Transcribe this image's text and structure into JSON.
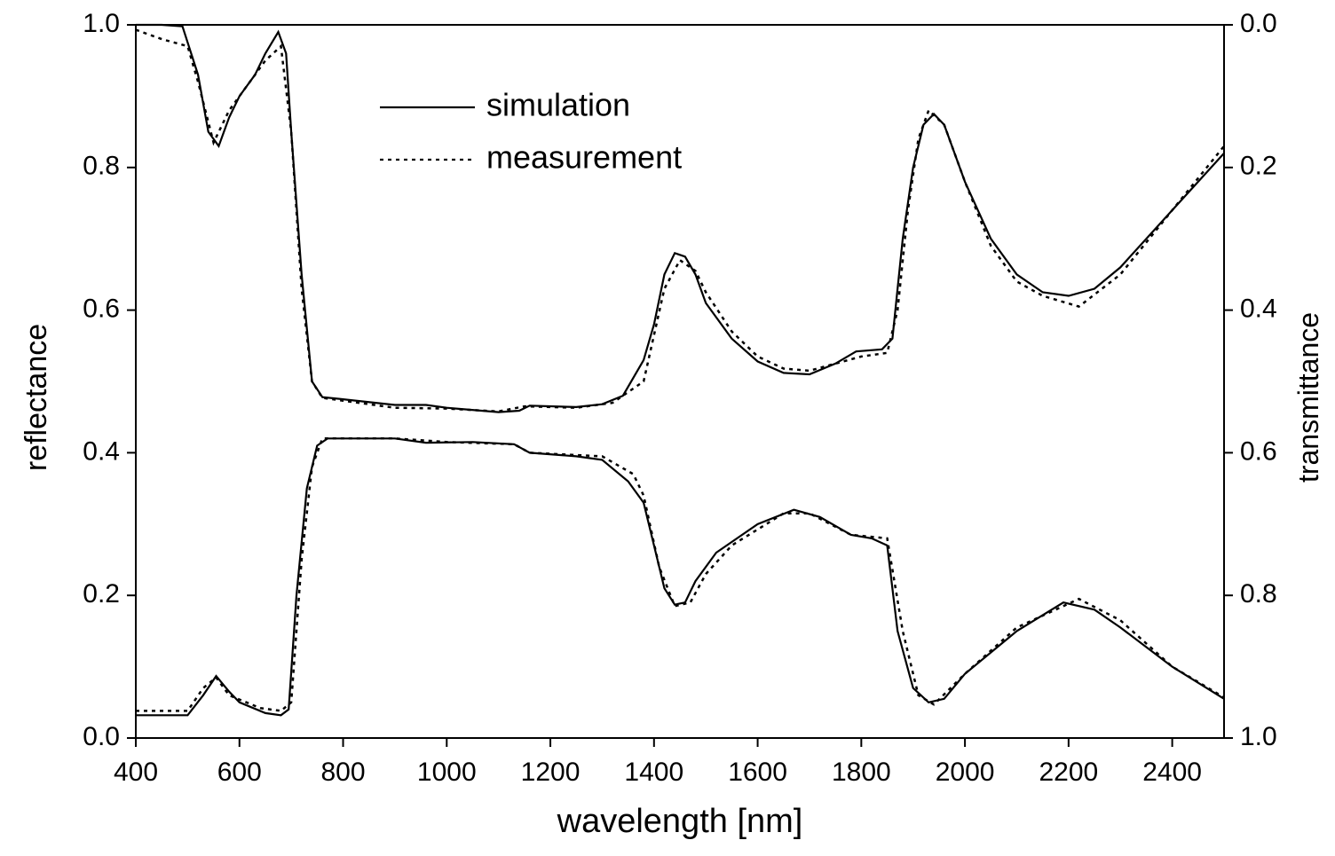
{
  "chart_data": {
    "type": "line",
    "xlabel": "wavelength [nm]",
    "ylabel": "reflectance",
    "y2label": "transmittance",
    "xlim": [
      400,
      2500
    ],
    "xticks": [
      400,
      600,
      800,
      1000,
      1200,
      1400,
      1600,
      1800,
      2000,
      2200,
      2400
    ],
    "ylim": [
      0,
      1
    ],
    "yticks": [
      {
        "value": 0,
        "label": "0.0"
      },
      0.2,
      0.4,
      0.6,
      0.8,
      {
        "value": 1,
        "label": "1.0"
      }
    ],
    "y2lim": [
      1,
      0
    ],
    "y2ticks": [
      {
        "value": 0,
        "label": "0.0"
      },
      0.2,
      0.4,
      0.6,
      0.8,
      {
        "value": 1,
        "label": "1.0"
      }
    ],
    "legend": "top-center",
    "series": [
      {
        "name": "simulation",
        "color": "#000000",
        "dash": "solid",
        "x": [
          400,
          450,
          490,
          520,
          540,
          560,
          580,
          600,
          630,
          650,
          675,
          690,
          700,
          720,
          740,
          760,
          800,
          900,
          960,
          1000,
          1100,
          1140,
          1160,
          1250,
          1300,
          1340,
          1380,
          1400,
          1420,
          1440,
          1460,
          1480,
          1500,
          1550,
          1600,
          1650,
          1700,
          1750,
          1790,
          1840,
          1860,
          1880,
          1900,
          1920,
          1940,
          1960,
          2000,
          2050,
          2100,
          2150,
          2200,
          2250,
          2300,
          2400,
          2500
        ],
        "values": [
          1.0,
          1.0,
          0.998,
          0.93,
          0.85,
          0.83,
          0.87,
          0.9,
          0.93,
          0.96,
          0.99,
          0.96,
          0.85,
          0.65,
          0.5,
          0.478,
          0.475,
          0.467,
          0.467,
          0.463,
          0.457,
          0.459,
          0.466,
          0.464,
          0.468,
          0.48,
          0.53,
          0.58,
          0.65,
          0.68,
          0.675,
          0.65,
          0.61,
          0.56,
          0.528,
          0.512,
          0.51,
          0.525,
          0.542,
          0.545,
          0.56,
          0.7,
          0.8,
          0.86,
          0.875,
          0.86,
          0.78,
          0.7,
          0.65,
          0.625,
          0.62,
          0.63,
          0.66,
          0.74,
          0.82
        ]
      },
      {
        "name": "measurement",
        "color": "#000000",
        "dash": "dotted",
        "x": [
          400,
          450,
          500,
          520,
          550,
          580,
          600,
          650,
          680,
          700,
          720,
          740,
          760,
          800,
          900,
          1000,
          1100,
          1150,
          1250,
          1320,
          1380,
          1420,
          1450,
          1480,
          1500,
          1550,
          1600,
          1650,
          1700,
          1750,
          1800,
          1850,
          1870,
          1890,
          1910,
          1930,
          1960,
          2000,
          2050,
          2100,
          2150,
          2220,
          2300,
          2400,
          2500
        ],
        "values": [
          0.993,
          0.98,
          0.97,
          0.92,
          0.835,
          0.88,
          0.9,
          0.95,
          0.97,
          0.85,
          0.63,
          0.5,
          0.477,
          0.473,
          0.463,
          0.462,
          0.458,
          0.465,
          0.463,
          0.47,
          0.5,
          0.63,
          0.67,
          0.655,
          0.625,
          0.57,
          0.535,
          0.518,
          0.515,
          0.525,
          0.535,
          0.54,
          0.6,
          0.74,
          0.84,
          0.88,
          0.86,
          0.78,
          0.69,
          0.64,
          0.62,
          0.605,
          0.65,
          0.74,
          0.83
        ]
      },
      {
        "name": "simulation",
        "color": "#000000",
        "dash": "solid",
        "axis": "y2",
        "x": [
          400,
          500,
          530,
          555,
          580,
          600,
          650,
          680,
          695,
          710,
          730,
          750,
          770,
          900,
          960,
          1050,
          1130,
          1160,
          1250,
          1300,
          1350,
          1380,
          1400,
          1420,
          1440,
          1460,
          1480,
          1520,
          1600,
          1670,
          1720,
          1780,
          1820,
          1850,
          1870,
          1900,
          1930,
          1960,
          2000,
          2100,
          2190,
          2250,
          2300,
          2400,
          2500
        ],
        "values": [
          0.968,
          0.968,
          0.94,
          0.913,
          0.935,
          0.95,
          0.965,
          0.968,
          0.96,
          0.8,
          0.65,
          0.59,
          0.58,
          0.58,
          0.586,
          0.585,
          0.588,
          0.6,
          0.605,
          0.61,
          0.64,
          0.67,
          0.73,
          0.79,
          0.813,
          0.81,
          0.78,
          0.74,
          0.7,
          0.68,
          0.69,
          0.715,
          0.72,
          0.73,
          0.85,
          0.93,
          0.95,
          0.945,
          0.91,
          0.85,
          0.81,
          0.82,
          0.845,
          0.9,
          0.945
        ]
      },
      {
        "name": "measurement",
        "color": "#000000",
        "dash": "dotted",
        "axis": "y2",
        "x": [
          400,
          500,
          530,
          555,
          580,
          640,
          680,
          700,
          720,
          740,
          760,
          900,
          1000,
          1130,
          1160,
          1300,
          1360,
          1380,
          1410,
          1440,
          1470,
          1500,
          1550,
          1650,
          1700,
          1780,
          1850,
          1880,
          1910,
          1940,
          2000,
          2100,
          2220,
          2300,
          2400,
          2500
        ],
        "values": [
          0.962,
          0.962,
          0.93,
          0.915,
          0.94,
          0.958,
          0.962,
          0.95,
          0.75,
          0.62,
          0.58,
          0.58,
          0.585,
          0.588,
          0.6,
          0.605,
          0.63,
          0.66,
          0.76,
          0.815,
          0.81,
          0.77,
          0.73,
          0.685,
          0.685,
          0.715,
          0.72,
          0.85,
          0.94,
          0.953,
          0.91,
          0.845,
          0.805,
          0.835,
          0.9,
          0.943
        ]
      }
    ]
  }
}
